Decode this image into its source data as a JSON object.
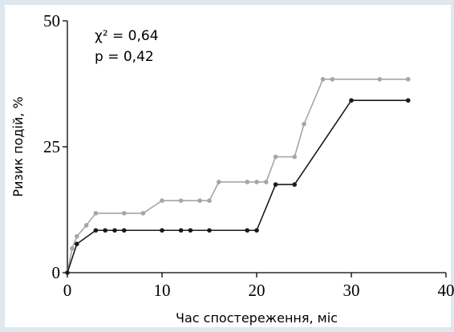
{
  "chart_data": {
    "type": "line",
    "annotations": [
      "χ² = 0,64",
      "p = 0,42"
    ],
    "x_label": "Час спостереження, міс",
    "y_label": "Ризик подій, %",
    "series": [
      {
        "color": "#a6a6a6",
        "x": [
          0,
          0.5,
          1,
          2,
          3,
          6,
          8,
          10,
          12,
          14,
          15,
          16,
          19,
          20,
          21,
          22,
          24,
          25,
          27,
          28,
          33,
          36
        ],
        "values": [
          0,
          4.8,
          7.2,
          9.4,
          11.8,
          11.8,
          11.8,
          14.3,
          14.3,
          14.3,
          14.3,
          18,
          18,
          18,
          18,
          23,
          23,
          29.5,
          38.4,
          38.4,
          38.4,
          38.4
        ]
      },
      {
        "color": "#1a1a1a",
        "x": [
          0,
          1,
          3,
          4,
          5,
          6,
          10,
          12,
          13,
          15,
          19,
          20,
          22,
          24,
          30,
          36
        ],
        "values": [
          0,
          5.7,
          8.4,
          8.4,
          8.4,
          8.4,
          8.4,
          8.4,
          8.4,
          8.4,
          8.4,
          8.4,
          17.5,
          17.5,
          34.2,
          34.2
        ]
      }
    ],
    "xlim": [
      0,
      40
    ],
    "xticks": [
      0,
      10,
      20,
      30,
      40
    ],
    "ylim": [
      0,
      50
    ],
    "yticks": [
      0,
      25,
      50
    ]
  }
}
